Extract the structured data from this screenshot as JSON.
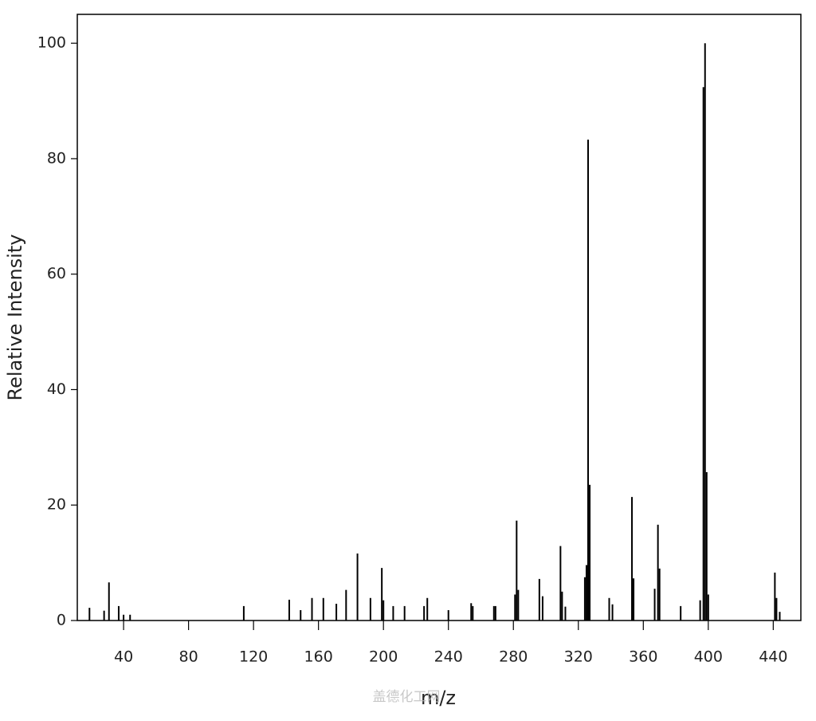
{
  "chart_data": {
    "type": "stick",
    "x_label": "m/z",
    "y_label": "Relative Intensity",
    "watermark": "盖德化工网",
    "color": "#000000",
    "xlim": [
      11.5,
      457
    ],
    "ylim": [
      0,
      105
    ],
    "xticks": [
      40,
      80,
      120,
      160,
      200,
      240,
      280,
      320,
      360,
      400,
      440
    ],
    "yticks": [
      0,
      20,
      40,
      60,
      80,
      100
    ],
    "x": [
      19,
      28,
      31,
      37,
      40,
      44,
      114,
      142,
      149,
      156,
      163,
      171,
      177,
      184,
      192,
      199,
      200,
      206,
      213,
      225,
      227,
      240,
      254,
      255,
      268,
      269,
      281,
      282,
      283,
      296,
      298,
      309,
      310,
      312,
      324,
      325,
      326,
      327,
      339,
      341,
      353,
      354,
      367,
      369,
      370,
      383,
      395,
      397,
      398,
      399,
      400,
      441,
      442,
      444
    ],
    "values": [
      2.2,
      1.7,
      6.6,
      2.5,
      1,
      1,
      2.5,
      3.6,
      1.8,
      3.9,
      3.9,
      2.9,
      5.3,
      11.6,
      3.9,
      9.1,
      3.5,
      2.5,
      2.5,
      2.5,
      3.9,
      1.8,
      3,
      2.5,
      2.5,
      2.5,
      4.5,
      17.3,
      5.3,
      7.2,
      4.2,
      12.9,
      5,
      2.4,
      7.5,
      9.6,
      83.3,
      23.5,
      3.9,
      2.8,
      21.4,
      7.3,
      5.5,
      16.6,
      9,
      2.5,
      3.5,
      92.4,
      100,
      25.7,
      4.5,
      8.3,
      3.9,
      1.5
    ]
  }
}
